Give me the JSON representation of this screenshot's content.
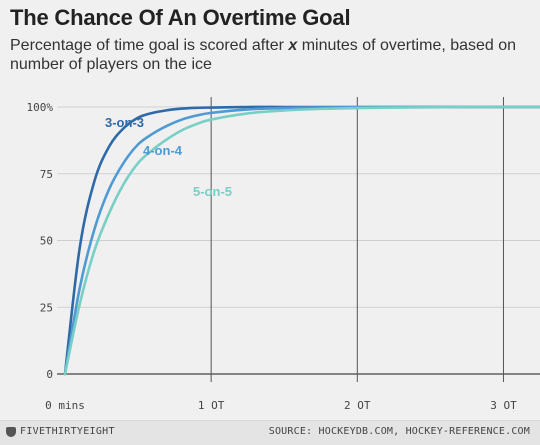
{
  "header": {
    "title": "The Chance Of An Overtime Goal",
    "subtitle_pre": "Percentage of time goal is scored after ",
    "subtitle_em": "x",
    "subtitle_post": " minutes of overtime, based on number of players on the ice"
  },
  "footer": {
    "brand": "FIVETHIRTYEIGHT",
    "source": "SOURCE: HOCKEYDB.COM, HOCKEY-REFERENCE.COM"
  },
  "colors": {
    "3-on-3": "#2e6aa8",
    "4-on-4": "#4f9ad3",
    "5-on-5": "#78cfc5"
  },
  "chart_data": {
    "type": "line",
    "title": "The Chance Of An Overtime Goal",
    "xlabel": "",
    "ylabel": "",
    "xlim": [
      0,
      65
    ],
    "ylim": [
      0,
      100
    ],
    "x_ticks": [
      {
        "value": 0,
        "label": "0 mins"
      },
      {
        "value": 20,
        "label": "1 OT"
      },
      {
        "value": 40,
        "label": "2 OT"
      },
      {
        "value": 60,
        "label": "3 OT"
      }
    ],
    "y_ticks": [
      {
        "value": 0,
        "label": "0"
      },
      {
        "value": 25,
        "label": "25"
      },
      {
        "value": 50,
        "label": "50"
      },
      {
        "value": 75,
        "label": "75"
      },
      {
        "value": 100,
        "label": "100%"
      }
    ],
    "grid": true,
    "x": [
      0,
      2,
      4,
      6,
      8,
      10,
      12,
      14,
      16,
      18,
      20,
      25,
      30,
      35,
      40,
      45,
      50,
      55,
      60,
      65
    ],
    "series": [
      {
        "name": "3-on-3",
        "values": [
          0,
          47,
          72,
          85,
          92,
          96,
          97.8,
          98.8,
          99.4,
          99.7,
          99.8,
          100,
          100,
          100,
          100,
          100,
          100,
          100,
          100,
          100
        ]
      },
      {
        "name": "4-on-4",
        "values": [
          0,
          32,
          54,
          69,
          79,
          86,
          90,
          93,
          95.3,
          96.8,
          97.8,
          99.1,
          99.6,
          99.8,
          99.9,
          100,
          100,
          100,
          100,
          100
        ]
      },
      {
        "name": "5-on-5",
        "values": [
          0,
          26,
          46,
          60,
          71,
          79,
          84,
          88,
          91.3,
          93.6,
          95.3,
          97.6,
          98.7,
          99.3,
          99.6,
          99.8,
          99.9,
          100,
          100,
          100
        ]
      }
    ]
  }
}
